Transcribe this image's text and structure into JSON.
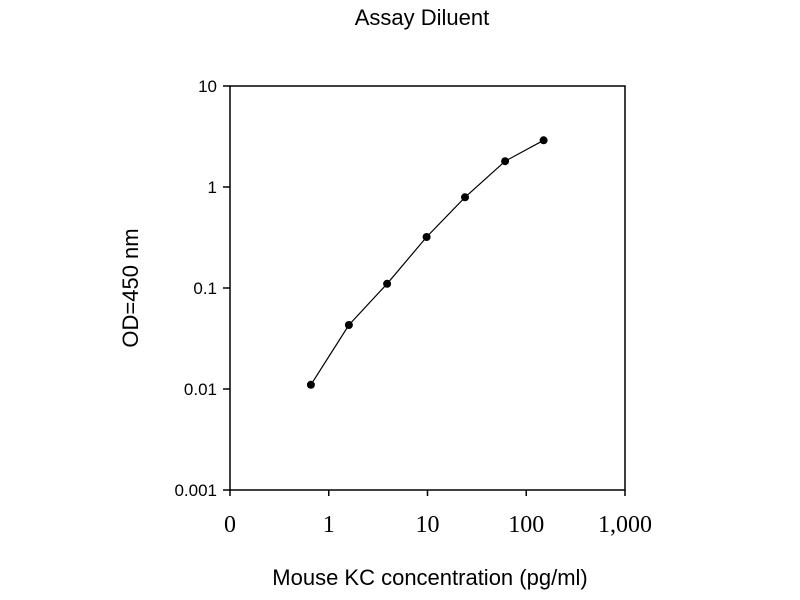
{
  "chart_data": {
    "type": "line",
    "title": "Assay Diluent",
    "xlabel": "Mouse KC concentration (pg/ml)",
    "ylabel": "OD=450 nm",
    "x_scale": "log",
    "y_scale": "log",
    "xlim": [
      0.1,
      1000
    ],
    "ylim": [
      0.001,
      10
    ],
    "x_tick_labels": [
      "0",
      "1",
      "10",
      "100",
      "1,000"
    ],
    "y_tick_labels": [
      "0.001",
      "0.01",
      "0.1",
      "1",
      "10"
    ],
    "grid": false,
    "legend": "none",
    "markers": "filled circles",
    "colors": {
      "line": "#000000",
      "marker": "#000000",
      "frame": "#000000"
    },
    "series": [
      {
        "x": [
          0.66,
          1.6,
          3.9,
          9.8,
          24,
          61,
          150
        ],
        "y": [
          0.011,
          0.043,
          0.11,
          0.32,
          0.79,
          1.8,
          2.9
        ]
      }
    ]
  }
}
